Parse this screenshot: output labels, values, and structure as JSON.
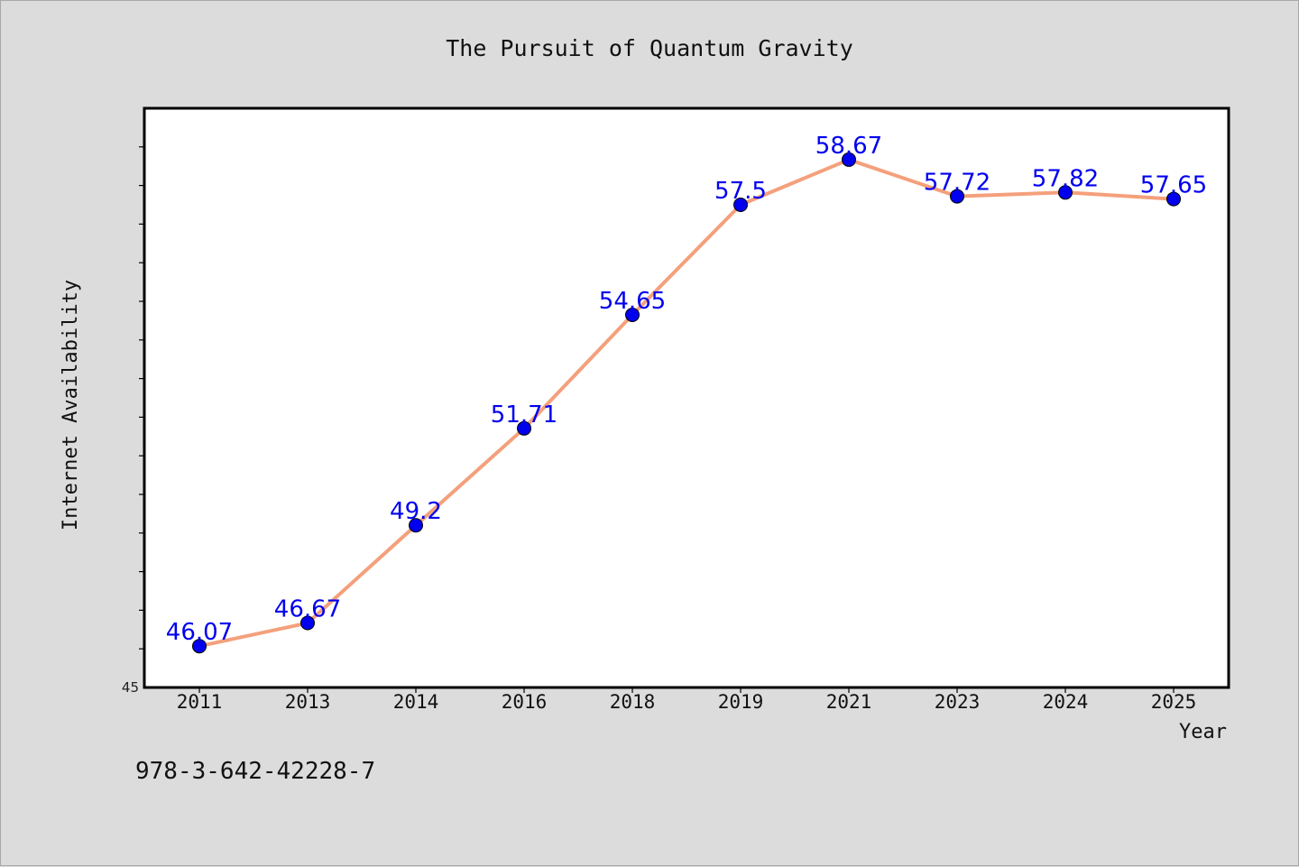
{
  "chart_data": {
    "type": "line",
    "title": "The Pursuit of Quantum Gravity",
    "xlabel": "Year",
    "ylabel": "Internet Availability",
    "categories": [
      "2011",
      "2013",
      "2014",
      "2016",
      "2018",
      "2019",
      "2021",
      "2023",
      "2024",
      "2025"
    ],
    "series": [
      {
        "values": [
          46.07,
          46.67,
          49.2,
          51.71,
          54.65,
          57.5,
          58.67,
          57.72,
          57.82,
          57.65
        ],
        "labels": [
          "46.07",
          "46.67",
          "49.2",
          "51.71",
          "54.65",
          "57.5",
          "58.67",
          "57.72",
          "57.82",
          "57.65"
        ],
        "line_color": "#f4a07c",
        "marker_color": "#0000ee"
      }
    ],
    "y_tick_labels": [
      "45"
    ],
    "ylim": [
      45,
      60
    ],
    "grid": false,
    "label_color": "#0000ee"
  },
  "footer": {
    "isbn": "978-3-642-42228-7"
  }
}
